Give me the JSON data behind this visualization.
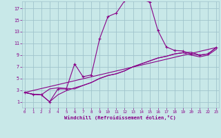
{
  "xlabel": "Windchill (Refroidissement éolien,°C)",
  "bg_color": "#c8e8e8",
  "grid_color": "#a0c4cc",
  "line_color": "#880088",
  "x_ticks": [
    0,
    1,
    2,
    3,
    4,
    5,
    6,
    7,
    8,
    9,
    10,
    11,
    12,
    13,
    14,
    15,
    16,
    17,
    18,
    19,
    20,
    21,
    22,
    23
  ],
  "y_ticks": [
    1,
    3,
    5,
    7,
    9,
    11,
    13,
    15,
    17
  ],
  "xlim": [
    -0.3,
    23.3
  ],
  "ylim": [
    0.0,
    18.2
  ],
  "line1_x": [
    0,
    1,
    2,
    3,
    4,
    5,
    6,
    7,
    8,
    9,
    10,
    11,
    12,
    13,
    14,
    15,
    16,
    17,
    18,
    19,
    20,
    21,
    22,
    23
  ],
  "line1_y": [
    2.6,
    2.3,
    2.2,
    1.0,
    3.2,
    3.2,
    7.5,
    5.3,
    5.6,
    11.8,
    15.6,
    16.2,
    18.3,
    18.5,
    18.5,
    18.1,
    13.2,
    10.4,
    9.8,
    9.7,
    9.2,
    9.0,
    9.2,
    10.3
  ],
  "line2_x": [
    0,
    23
  ],
  "line2_y": [
    2.6,
    10.3
  ],
  "line3_x": [
    0,
    1,
    2,
    3,
    4,
    5,
    6,
    7,
    8,
    9,
    10,
    11,
    12,
    13,
    14,
    15,
    16,
    17,
    18,
    19,
    20,
    21,
    22,
    23
  ],
  "line3_y": [
    2.6,
    2.3,
    2.2,
    3.2,
    3.4,
    3.3,
    3.2,
    3.8,
    4.3,
    5.0,
    5.5,
    5.8,
    6.3,
    7.0,
    7.5,
    8.0,
    8.5,
    8.8,
    9.2,
    9.4,
    9.5,
    9.0,
    9.2,
    10.3
  ],
  "line4_x": [
    0,
    1,
    2,
    3,
    4,
    5,
    6,
    7,
    8,
    9,
    10,
    11,
    12,
    13,
    14,
    15,
    16,
    17,
    18,
    19,
    20,
    21,
    22,
    23
  ],
  "line4_y": [
    2.6,
    2.3,
    2.2,
    1.0,
    2.2,
    2.9,
    3.4,
    3.8,
    4.3,
    5.0,
    5.5,
    5.8,
    6.3,
    7.0,
    7.5,
    8.0,
    8.5,
    8.8,
    9.2,
    9.4,
    9.0,
    8.7,
    9.0,
    10.0
  ]
}
